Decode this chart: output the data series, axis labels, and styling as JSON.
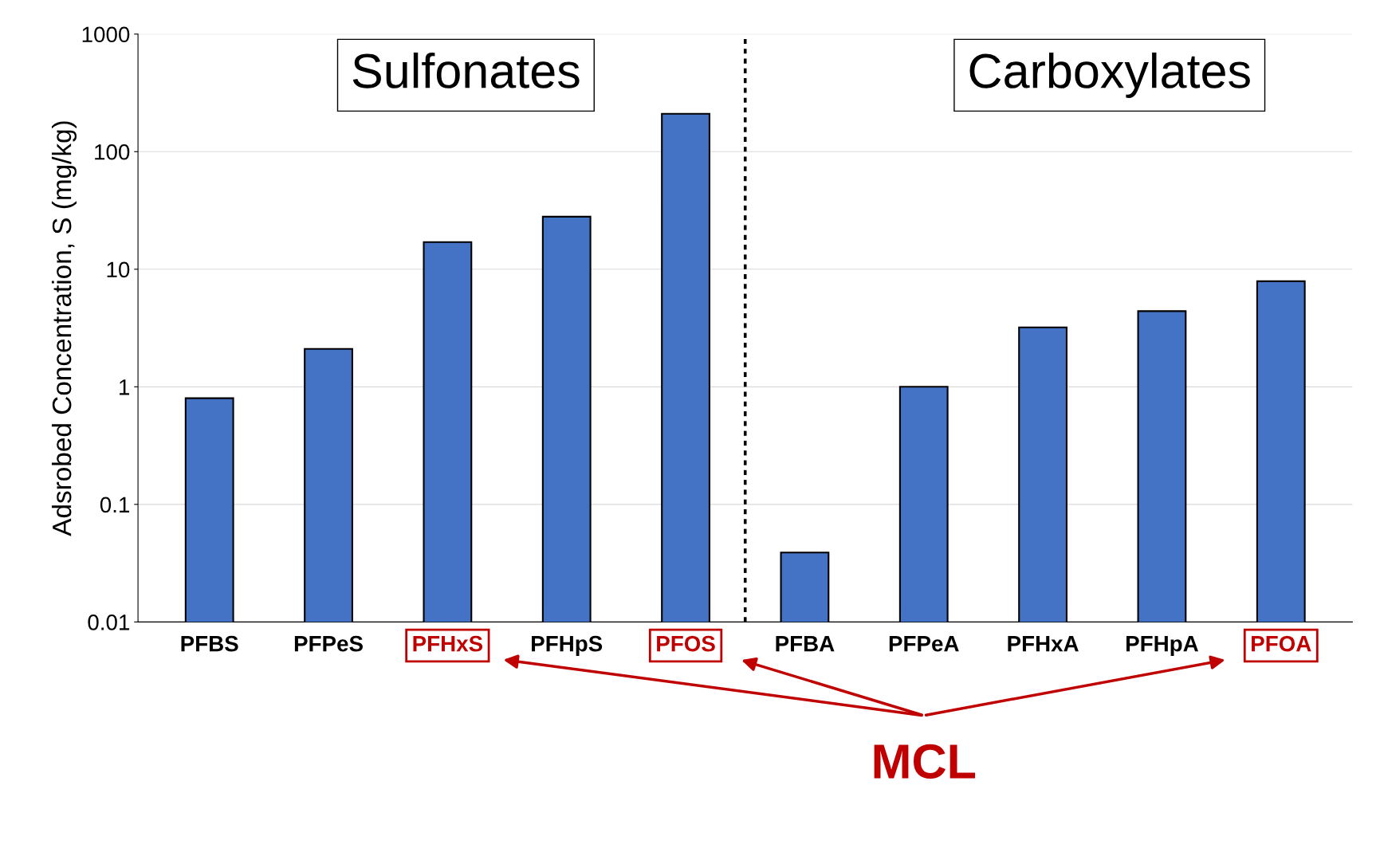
{
  "chart_data": {
    "type": "bar",
    "ylabel": "Adsrobed Concentration, S (mg/kg)",
    "categories": [
      "PFBS",
      "PFPeS",
      "PFHxS",
      "PFHpS",
      "PFOS",
      "PFBA",
      "PFPeA",
      "PFHxA",
      "PFHpA",
      "PFOA"
    ],
    "values": [
      0.8,
      2.1,
      17,
      28,
      210,
      0.039,
      1.0,
      3.2,
      4.4,
      7.9
    ],
    "color": "#4472c4",
    "log": "y",
    "ylim": [
      0.01,
      1000
    ],
    "yticks": [
      0.01,
      0.1,
      1,
      10,
      100,
      1000
    ],
    "grid": "y",
    "annotations": [
      "Sulfonates",
      "Carboxylates",
      "MCL"
    ]
  }
}
